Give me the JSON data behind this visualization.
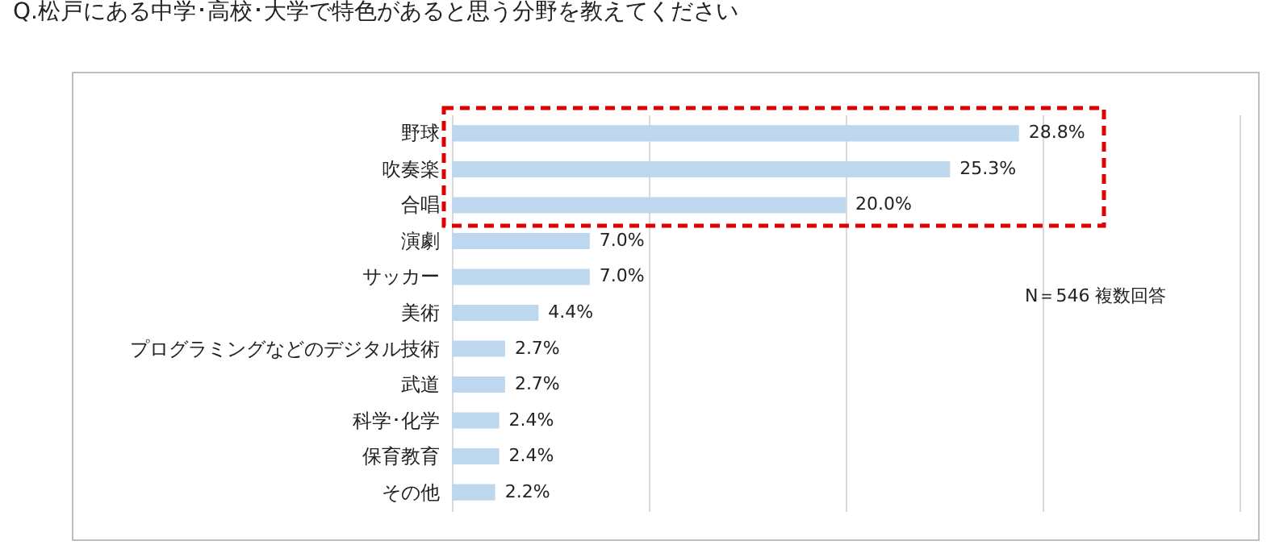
{
  "chart_data": {
    "type": "bar",
    "orientation": "horizontal",
    "title": "Q.松戸にある中学･高校･大学で特色があると思う分野を教えてください",
    "categories": [
      "野球",
      "吹奏楽",
      "合唱",
      "演劇",
      "サッカー",
      "美術",
      "プログラミングなどのデジタル技術",
      "武道",
      "科学･化学",
      "保育教育",
      "その他"
    ],
    "values": [
      28.8,
      25.3,
      20.0,
      7.0,
      7.0,
      4.4,
      2.7,
      2.7,
      2.4,
      2.4,
      2.2
    ],
    "value_labels": [
      "28.8%",
      "25.3%",
      "20.0%",
      "7.0%",
      "7.0%",
      "4.4%",
      "2.7%",
      "2.7%",
      "2.4%",
      "2.4%",
      "2.2%"
    ],
    "color": "#bdd7ee",
    "xlim": [
      0,
      40
    ],
    "xticks": [
      {
        "value": 0,
        "label": null
      },
      {
        "value": 10,
        "label": null
      },
      {
        "value": 20,
        "label": null
      },
      {
        "value": 30,
        "label": null
      },
      {
        "value": 40,
        "label": null
      }
    ],
    "grid": "x",
    "tick_labels": "y",
    "annotations": [
      "N＝546  複数回答"
    ]
  }
}
